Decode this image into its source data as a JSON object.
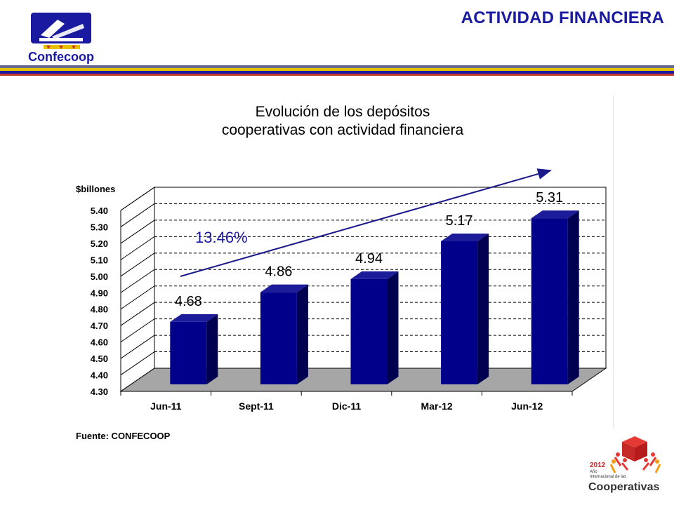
{
  "header": {
    "title": "ACTIVIDAD FINANCIERA",
    "logo_text": "Confecoop"
  },
  "colors": {
    "brand_blue": "#1a1aa0",
    "bar_front": "#00008b",
    "bar_side": "#000050",
    "bar_top": "#1c1c9a",
    "trend_line": "#1a1a8c",
    "floor": "#a6a6a6",
    "rule_colors": [
      "#6b6b8f",
      "#e6c200",
      "#1a1aa0",
      "#c0392b"
    ]
  },
  "chart_data": {
    "type": "bar",
    "title": "Evolución de los depósitos\ncooperativas con actividad financiera",
    "ylabel": "$billones",
    "xlabel": "",
    "categories": [
      "Jun-11",
      "Sept-11",
      "Dic-11",
      "Mar-12",
      "Jun-12"
    ],
    "series": [
      {
        "values": [
          4.68,
          4.86,
          4.94,
          5.17,
          5.31
        ]
      }
    ],
    "data_labels": [
      "4.68",
      "4.86",
      "4.94",
      "5.17",
      "5.31"
    ],
    "y_ticks": [
      "4.30",
      "4.40",
      "4.50",
      "4.60",
      "4.70",
      "4.80",
      "4.90",
      "5.00",
      "5.10",
      "5.20",
      "5.30",
      "5.40"
    ],
    "ylim": [
      4.3,
      5.4
    ],
    "grid": true,
    "legend": "none",
    "annotation": "13.46%",
    "trend_arrow": true,
    "source": "Fuente: CONFECOOP"
  },
  "footer_logo": {
    "year": "2012",
    "line1": "Año",
    "line2": "Internacional de las",
    "name": "Cooperativas"
  }
}
